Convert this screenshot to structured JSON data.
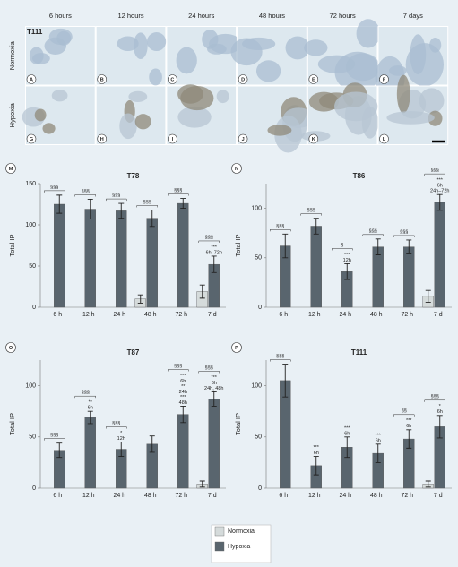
{
  "micrographs": {
    "sample": "T111",
    "columns": [
      "6 hours",
      "12 hours",
      "24 hours",
      "48 hours",
      "72 hours",
      "7 days"
    ],
    "rows": [
      "Normoxia",
      "Hypoxia"
    ],
    "panels": [
      "A",
      "B",
      "C",
      "D",
      "E",
      "F",
      "G",
      "H",
      "I",
      "J",
      "K",
      "L"
    ]
  },
  "chart_data": [
    {
      "type": "bar",
      "panel": "M",
      "title": "T78",
      "ylabel": "Total IP",
      "categories": [
        "6 h",
        "12 h",
        "24 h",
        "48 h",
        "72 h",
        "7 d"
      ],
      "ylim": [
        0,
        150
      ],
      "yticks": [
        0,
        50,
        100,
        150
      ],
      "series": [
        {
          "name": "Normoxia",
          "color": "#d5dbdb",
          "values": [
            null,
            null,
            null,
            10,
            null,
            19
          ],
          "errors": [
            null,
            null,
            null,
            5,
            null,
            8
          ]
        },
        {
          "name": "Hypoxia",
          "color": "#59656e",
          "values": [
            125,
            119,
            117,
            108,
            126,
            52
          ],
          "errors": [
            11,
            12,
            9,
            10,
            6,
            10
          ]
        }
      ],
      "significance": [
        "§§§",
        "§§§",
        "§§§",
        "§§§",
        "§§§",
        "§§§"
      ],
      "stats": [
        null,
        null,
        null,
        null,
        null,
        [
          "***",
          "6h–72h"
        ]
      ]
    },
    {
      "type": "bar",
      "panel": "N",
      "title": "T86",
      "ylabel": "Total IP",
      "categories": [
        "6 h",
        "12 h",
        "24 h",
        "48 h",
        "72 h",
        "7 d"
      ],
      "ylim": [
        0,
        125
      ],
      "yticks": [
        0,
        50,
        100
      ],
      "series": [
        {
          "name": "Normoxia",
          "color": "#d5dbdb",
          "values": [
            null,
            null,
            null,
            null,
            null,
            11
          ],
          "errors": [
            null,
            null,
            null,
            null,
            null,
            6
          ]
        },
        {
          "name": "Hypoxia",
          "color": "#59656e",
          "values": [
            62,
            82,
            36,
            61,
            61,
            106
          ],
          "errors": [
            12,
            8,
            8,
            8,
            7,
            8
          ]
        }
      ],
      "significance": [
        "§§§",
        "§§§",
        "§",
        "§§§",
        "§§§",
        "§§§"
      ],
      "stats": [
        null,
        null,
        [
          "***",
          "12h"
        ],
        null,
        null,
        [
          "***",
          "6h",
          "24h–72h"
        ]
      ]
    },
    {
      "type": "bar",
      "panel": "O",
      "title": "T87",
      "ylabel": "Total IP",
      "categories": [
        "6 h",
        "12 h",
        "24 h",
        "48 h",
        "72 h",
        "7 d"
      ],
      "ylim": [
        0,
        125
      ],
      "yticks": [
        0,
        50,
        100
      ],
      "series": [
        {
          "name": "Normoxia",
          "color": "#d5dbdb",
          "values": [
            null,
            null,
            null,
            null,
            null,
            4
          ],
          "errors": [
            null,
            null,
            null,
            null,
            null,
            3
          ]
        },
        {
          "name": "Hypoxia",
          "color": "#59656e",
          "values": [
            37,
            69,
            38,
            43,
            72,
            87
          ],
          "errors": [
            7,
            6,
            7,
            8,
            8,
            7
          ]
        }
      ],
      "significance": [
        "§§§",
        "§§§",
        "§§§",
        null,
        "§§§",
        "§§§"
      ],
      "stats": [
        null,
        [
          "**",
          "6h"
        ],
        [
          "*",
          "12h"
        ],
        null,
        [
          "***",
          "6h",
          "**",
          "24h",
          "***",
          "48h"
        ],
        [
          "***",
          "6h",
          "24h, 48h"
        ]
      ]
    },
    {
      "type": "bar",
      "panel": "P",
      "title": "T111",
      "ylabel": "Total IP",
      "categories": [
        "6 h",
        "12 h",
        "24 h",
        "48 h",
        "72 h",
        "7 d"
      ],
      "ylim": [
        0,
        125
      ],
      "yticks": [
        0,
        50,
        100
      ],
      "series": [
        {
          "name": "Normoxia",
          "color": "#d5dbdb",
          "values": [
            null,
            null,
            null,
            null,
            null,
            4
          ],
          "errors": [
            null,
            null,
            null,
            null,
            null,
            3
          ]
        },
        {
          "name": "Hypoxia",
          "color": "#59656e",
          "values": [
            105,
            22,
            40,
            34,
            48,
            60
          ],
          "errors": [
            16,
            9,
            10,
            9,
            9,
            11
          ]
        }
      ],
      "significance": [
        "§§§",
        null,
        null,
        null,
        "§§",
        "§§§"
      ],
      "stats": [
        null,
        [
          "***",
          "6h"
        ],
        [
          "***",
          "6h"
        ],
        [
          "***",
          "6h"
        ],
        [
          "***",
          "6h"
        ],
        [
          "*",
          "6h"
        ]
      ]
    }
  ]
}
